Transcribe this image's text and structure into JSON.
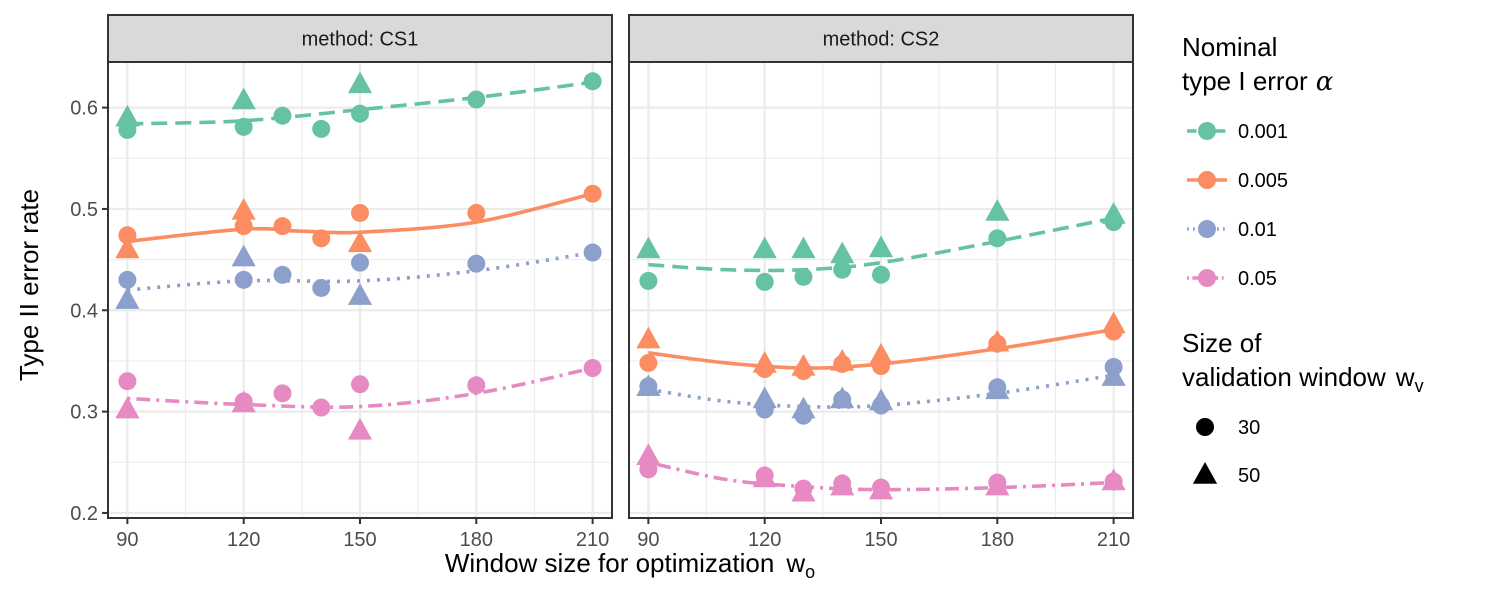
{
  "chart_data": {
    "type": "scatter",
    "ylabel": "Type II error rate",
    "xlabel": "Window size for optimization",
    "xlabel_sub": "o",
    "xlabel_symbol": "w",
    "xlim": [
      85,
      215
    ],
    "ylim": [
      0.195,
      0.645
    ],
    "x_ticks": [
      90,
      120,
      150,
      180,
      210
    ],
    "y_ticks": [
      0.2,
      0.3,
      0.4,
      0.5,
      0.6
    ],
    "grid": true,
    "colors": {
      "0.001": "#66c2a5",
      "0.005": "#fc8d62",
      "0.01": "#8da0cb",
      "0.05": "#e78ac3"
    },
    "line_styles": {
      "0.001": "dashed",
      "0.005": "solid",
      "0.01": "dotted",
      "0.05": "dashdot"
    },
    "legend": {
      "color_title_line1": "Nominal",
      "color_title_line2": "type I error",
      "color_title_symbol": "α",
      "color_items": [
        "0.001",
        "0.005",
        "0.01",
        "0.05"
      ],
      "shape_title_line1": "Size of",
      "shape_title_line2": "validation window",
      "shape_title_symbol": "w",
      "shape_title_sub": "v",
      "shape_items": [
        {
          "label": "30",
          "shape": "circle"
        },
        {
          "label": "50",
          "shape": "triangle"
        }
      ]
    },
    "panels": [
      {
        "strip": "method: CS1",
        "series": [
          {
            "alpha": "0.001",
            "points": [
              {
                "x": 90,
                "y": 0.578,
                "wv": 30
              },
              {
                "x": 90,
                "y": 0.59,
                "wv": 50
              },
              {
                "x": 120,
                "y": 0.581,
                "wv": 30
              },
              {
                "x": 120,
                "y": 0.607,
                "wv": 50
              },
              {
                "x": 130,
                "y": 0.592,
                "wv": 30
              },
              {
                "x": 140,
                "y": 0.579,
                "wv": 30
              },
              {
                "x": 150,
                "y": 0.594,
                "wv": 30
              },
              {
                "x": 150,
                "y": 0.623,
                "wv": 50
              },
              {
                "x": 180,
                "y": 0.608,
                "wv": 30
              },
              {
                "x": 210,
                "y": 0.626,
                "wv": 30
              }
            ],
            "fit": [
              [
                90,
                0.584
              ],
              [
                120,
                0.587
              ],
              [
                150,
                0.598
              ],
              [
                180,
                0.61
              ],
              [
                210,
                0.625
              ]
            ]
          },
          {
            "alpha": "0.005",
            "points": [
              {
                "x": 90,
                "y": 0.474,
                "wv": 30
              },
              {
                "x": 90,
                "y": 0.46,
                "wv": 50
              },
              {
                "x": 120,
                "y": 0.483,
                "wv": 30
              },
              {
                "x": 120,
                "y": 0.498,
                "wv": 50
              },
              {
                "x": 130,
                "y": 0.483,
                "wv": 30
              },
              {
                "x": 140,
                "y": 0.471,
                "wv": 30
              },
              {
                "x": 150,
                "y": 0.496,
                "wv": 30
              },
              {
                "x": 150,
                "y": 0.466,
                "wv": 50
              },
              {
                "x": 180,
                "y": 0.496,
                "wv": 30
              },
              {
                "x": 210,
                "y": 0.515,
                "wv": 30
              }
            ],
            "fit": [
              [
                90,
                0.468
              ],
              [
                120,
                0.48
              ],
              [
                135,
                0.478
              ],
              [
                150,
                0.477
              ],
              [
                180,
                0.487
              ],
              [
                210,
                0.515
              ]
            ]
          },
          {
            "alpha": "0.01",
            "points": [
              {
                "x": 90,
                "y": 0.43,
                "wv": 30
              },
              {
                "x": 90,
                "y": 0.41,
                "wv": 50
              },
              {
                "x": 120,
                "y": 0.43,
                "wv": 30
              },
              {
                "x": 120,
                "y": 0.452,
                "wv": 50
              },
              {
                "x": 130,
                "y": 0.435,
                "wv": 30
              },
              {
                "x": 140,
                "y": 0.422,
                "wv": 30
              },
              {
                "x": 150,
                "y": 0.447,
                "wv": 30
              },
              {
                "x": 150,
                "y": 0.414,
                "wv": 50
              },
              {
                "x": 180,
                "y": 0.446,
                "wv": 30
              },
              {
                "x": 210,
                "y": 0.457,
                "wv": 30
              }
            ],
            "fit": [
              [
                90,
                0.42
              ],
              [
                120,
                0.429
              ],
              [
                150,
                0.429
              ],
              [
                180,
                0.439
              ],
              [
                210,
                0.457
              ]
            ]
          },
          {
            "alpha": "0.05",
            "points": [
              {
                "x": 90,
                "y": 0.33,
                "wv": 30
              },
              {
                "x": 90,
                "y": 0.302,
                "wv": 50
              },
              {
                "x": 120,
                "y": 0.31,
                "wv": 30
              },
              {
                "x": 120,
                "y": 0.308,
                "wv": 50
              },
              {
                "x": 130,
                "y": 0.318,
                "wv": 30
              },
              {
                "x": 140,
                "y": 0.304,
                "wv": 30
              },
              {
                "x": 150,
                "y": 0.327,
                "wv": 30
              },
              {
                "x": 150,
                "y": 0.281,
                "wv": 50
              },
              {
                "x": 180,
                "y": 0.326,
                "wv": 30
              },
              {
                "x": 210,
                "y": 0.343,
                "wv": 30
              }
            ],
            "fit": [
              [
                90,
                0.313
              ],
              [
                120,
                0.307
              ],
              [
                150,
                0.305
              ],
              [
                180,
                0.318
              ],
              [
                210,
                0.343
              ]
            ]
          }
        ]
      },
      {
        "strip": "method: CS2",
        "series": [
          {
            "alpha": "0.001",
            "points": [
              {
                "x": 90,
                "y": 0.429,
                "wv": 30
              },
              {
                "x": 90,
                "y": 0.46,
                "wv": 50
              },
              {
                "x": 120,
                "y": 0.428,
                "wv": 30
              },
              {
                "x": 120,
                "y": 0.46,
                "wv": 50
              },
              {
                "x": 130,
                "y": 0.433,
                "wv": 30
              },
              {
                "x": 130,
                "y": 0.46,
                "wv": 50
              },
              {
                "x": 140,
                "y": 0.44,
                "wv": 30
              },
              {
                "x": 140,
                "y": 0.455,
                "wv": 50
              },
              {
                "x": 150,
                "y": 0.435,
                "wv": 30
              },
              {
                "x": 150,
                "y": 0.461,
                "wv": 50
              },
              {
                "x": 180,
                "y": 0.471,
                "wv": 30
              },
              {
                "x": 180,
                "y": 0.497,
                "wv": 50
              },
              {
                "x": 210,
                "y": 0.487,
                "wv": 30
              },
              {
                "x": 210,
                "y": 0.494,
                "wv": 50
              }
            ],
            "fit": [
              [
                90,
                0.445
              ],
              [
                110,
                0.44
              ],
              [
                130,
                0.44
              ],
              [
                150,
                0.447
              ],
              [
                180,
                0.468
              ],
              [
                210,
                0.491
              ]
            ]
          },
          {
            "alpha": "0.005",
            "points": [
              {
                "x": 90,
                "y": 0.348,
                "wv": 30
              },
              {
                "x": 90,
                "y": 0.371,
                "wv": 50
              },
              {
                "x": 120,
                "y": 0.342,
                "wv": 30
              },
              {
                "x": 120,
                "y": 0.347,
                "wv": 50
              },
              {
                "x": 130,
                "y": 0.34,
                "wv": 30
              },
              {
                "x": 130,
                "y": 0.344,
                "wv": 50
              },
              {
                "x": 140,
                "y": 0.347,
                "wv": 30
              },
              {
                "x": 140,
                "y": 0.349,
                "wv": 50
              },
              {
                "x": 150,
                "y": 0.345,
                "wv": 30
              },
              {
                "x": 150,
                "y": 0.355,
                "wv": 50
              },
              {
                "x": 180,
                "y": 0.367,
                "wv": 30
              },
              {
                "x": 180,
                "y": 0.368,
                "wv": 50
              },
              {
                "x": 210,
                "y": 0.379,
                "wv": 30
              },
              {
                "x": 210,
                "y": 0.386,
                "wv": 50
              }
            ],
            "fit": [
              [
                90,
                0.358
              ],
              [
                110,
                0.348
              ],
              [
                130,
                0.343
              ],
              [
                150,
                0.347
              ],
              [
                180,
                0.362
              ],
              [
                210,
                0.381
              ]
            ]
          },
          {
            "alpha": "0.01",
            "points": [
              {
                "x": 90,
                "y": 0.325,
                "wv": 30
              },
              {
                "x": 90,
                "y": 0.324,
                "wv": 50
              },
              {
                "x": 120,
                "y": 0.302,
                "wv": 30
              },
              {
                "x": 120,
                "y": 0.312,
                "wv": 50
              },
              {
                "x": 130,
                "y": 0.296,
                "wv": 30
              },
              {
                "x": 130,
                "y": 0.302,
                "wv": 50
              },
              {
                "x": 140,
                "y": 0.312,
                "wv": 30
              },
              {
                "x": 140,
                "y": 0.312,
                "wv": 50
              },
              {
                "x": 150,
                "y": 0.306,
                "wv": 30
              },
              {
                "x": 150,
                "y": 0.31,
                "wv": 50
              },
              {
                "x": 180,
                "y": 0.324,
                "wv": 30
              },
              {
                "x": 180,
                "y": 0.321,
                "wv": 50
              },
              {
                "x": 210,
                "y": 0.344,
                "wv": 30
              },
              {
                "x": 210,
                "y": 0.334,
                "wv": 50
              }
            ],
            "fit": [
              [
                90,
                0.322
              ],
              [
                110,
                0.31
              ],
              [
                130,
                0.305
              ],
              [
                150,
                0.306
              ],
              [
                180,
                0.318
              ],
              [
                210,
                0.336
              ]
            ]
          },
          {
            "alpha": "0.05",
            "points": [
              {
                "x": 90,
                "y": 0.243,
                "wv": 30
              },
              {
                "x": 90,
                "y": 0.256,
                "wv": 50
              },
              {
                "x": 120,
                "y": 0.237,
                "wv": 30
              },
              {
                "x": 120,
                "y": 0.234,
                "wv": 50
              },
              {
                "x": 130,
                "y": 0.224,
                "wv": 30
              },
              {
                "x": 130,
                "y": 0.22,
                "wv": 50
              },
              {
                "x": 140,
                "y": 0.229,
                "wv": 30
              },
              {
                "x": 140,
                "y": 0.226,
                "wv": 50
              },
              {
                "x": 150,
                "y": 0.225,
                "wv": 30
              },
              {
                "x": 150,
                "y": 0.222,
                "wv": 50
              },
              {
                "x": 180,
                "y": 0.23,
                "wv": 30
              },
              {
                "x": 180,
                "y": 0.226,
                "wv": 50
              },
              {
                "x": 210,
                "y": 0.231,
                "wv": 30
              },
              {
                "x": 210,
                "y": 0.231,
                "wv": 50
              }
            ],
            "fit": [
              [
                90,
                0.25
              ],
              [
                110,
                0.233
              ],
              [
                130,
                0.226
              ],
              [
                150,
                0.223
              ],
              [
                180,
                0.225
              ],
              [
                210,
                0.23
              ]
            ]
          }
        ]
      }
    ]
  }
}
